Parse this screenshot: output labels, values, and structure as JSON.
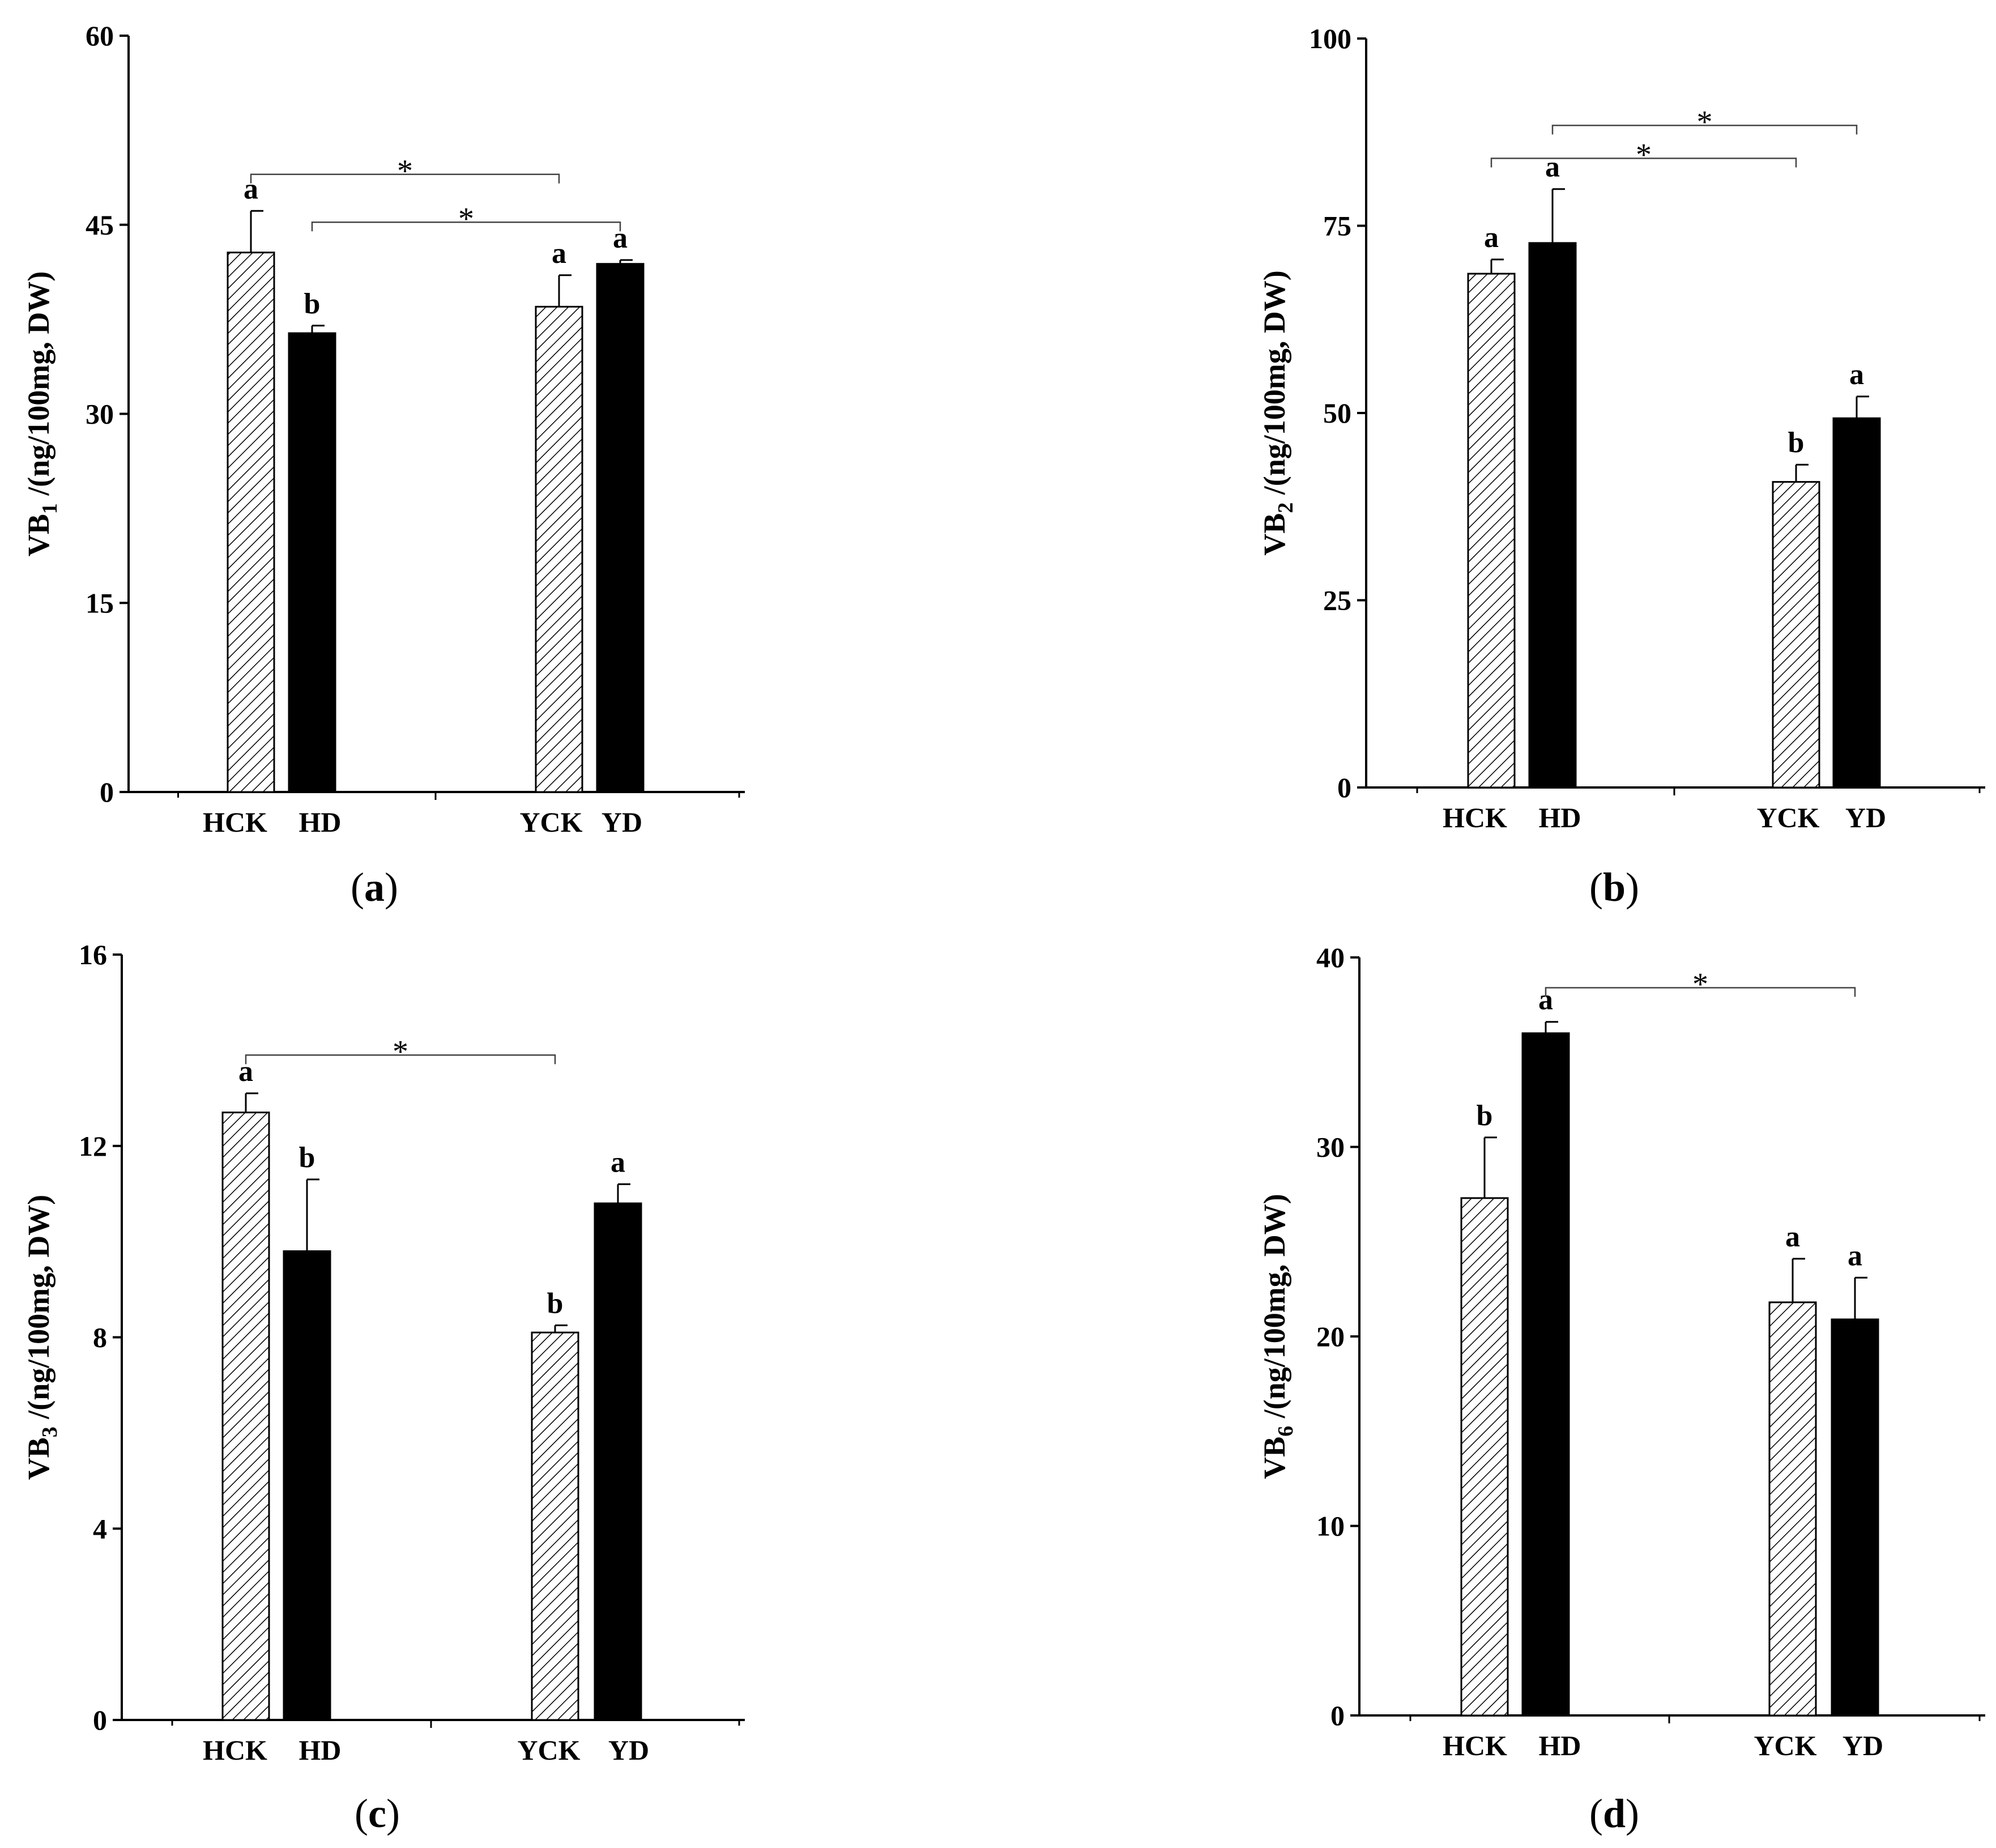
{
  "chart_data": [
    {
      "type": "bar",
      "panel_label": "a",
      "title": "",
      "xlabel": "",
      "ylabel": {
        "prefix": "VB",
        "sub": "1",
        "suffix": " /(ng/100mg,  DW)"
      },
      "ylim": [
        0,
        60
      ],
      "yticks": [
        0,
        15,
        30,
        45,
        60
      ],
      "categories": [
        "HCK",
        "HD",
        "YCK",
        "YD"
      ],
      "values": [
        42.8,
        36.4,
        38.5,
        41.9
      ],
      "errors": [
        3.3,
        0.6,
        2.5,
        0.3
      ],
      "letters": [
        "a",
        "b",
        "a",
        "a"
      ],
      "fills": [
        "hatch",
        "solid",
        "hatch",
        "solid"
      ],
      "significance": [
        {
          "from": 0,
          "to": 2,
          "y": 49.0,
          "label": "*"
        },
        {
          "from": 1,
          "to": 3,
          "y": 45.2,
          "label": "*"
        }
      ]
    },
    {
      "type": "bar",
      "panel_label": "b",
      "title": "",
      "xlabel": "",
      "ylabel": {
        "prefix": "VB",
        "sub": "2",
        "suffix": " /(ng/100mg,  DW)"
      },
      "ylim": [
        0,
        100
      ],
      "yticks": [
        0,
        25,
        50,
        75,
        100
      ],
      "categories": [
        "HCK",
        "HD",
        "YCK",
        "YD"
      ],
      "values": [
        68.6,
        72.7,
        40.8,
        49.3
      ],
      "errors": [
        1.9,
        7.2,
        2.3,
        2.9
      ],
      "letters": [
        "a",
        "a",
        "b",
        "a"
      ],
      "fills": [
        "hatch",
        "solid",
        "hatch",
        "solid"
      ],
      "significance": [
        {
          "from": 0,
          "to": 2,
          "y": 84.0,
          "label": "*"
        },
        {
          "from": 1,
          "to": 3,
          "y": 88.4,
          "label": "*"
        }
      ]
    },
    {
      "type": "bar",
      "panel_label": "c",
      "title": "",
      "xlabel": "",
      "ylabel": {
        "prefix": "VB",
        "sub": "3",
        "suffix": " /(ng/100mg,  DW)"
      },
      "ylim": [
        0,
        16
      ],
      "yticks": [
        0,
        4,
        8,
        12,
        16
      ],
      "categories": [
        "HCK",
        "HD",
        "YCK",
        "YD"
      ],
      "values": [
        12.7,
        9.8,
        8.1,
        10.8
      ],
      "errors": [
        0.4,
        1.5,
        0.15,
        0.4
      ],
      "letters": [
        "a",
        "b",
        "b",
        "a"
      ],
      "fills": [
        "hatch",
        "solid",
        "hatch",
        "solid"
      ],
      "significance": [
        {
          "from": 0,
          "to": 2,
          "y": 13.9,
          "label": "*"
        }
      ]
    },
    {
      "type": "bar",
      "panel_label": "d",
      "title": "",
      "xlabel": "",
      "ylabel": {
        "prefix": "VB",
        "sub": "6",
        "suffix": " /(ng/100mg,  DW)"
      },
      "ylim": [
        0,
        40
      ],
      "yticks": [
        0,
        10,
        20,
        30,
        40
      ],
      "categories": [
        "HCK",
        "HD",
        "YCK",
        "YD"
      ],
      "values": [
        27.3,
        36.0,
        21.8,
        20.9
      ],
      "errors": [
        3.2,
        0.6,
        2.3,
        2.2
      ],
      "letters": [
        "b",
        "a",
        "a",
        "a"
      ],
      "fills": [
        "hatch",
        "solid",
        "hatch",
        "solid"
      ],
      "significance": [
        {
          "from": 1,
          "to": 3,
          "y": 38.4,
          "label": "*"
        }
      ]
    }
  ]
}
